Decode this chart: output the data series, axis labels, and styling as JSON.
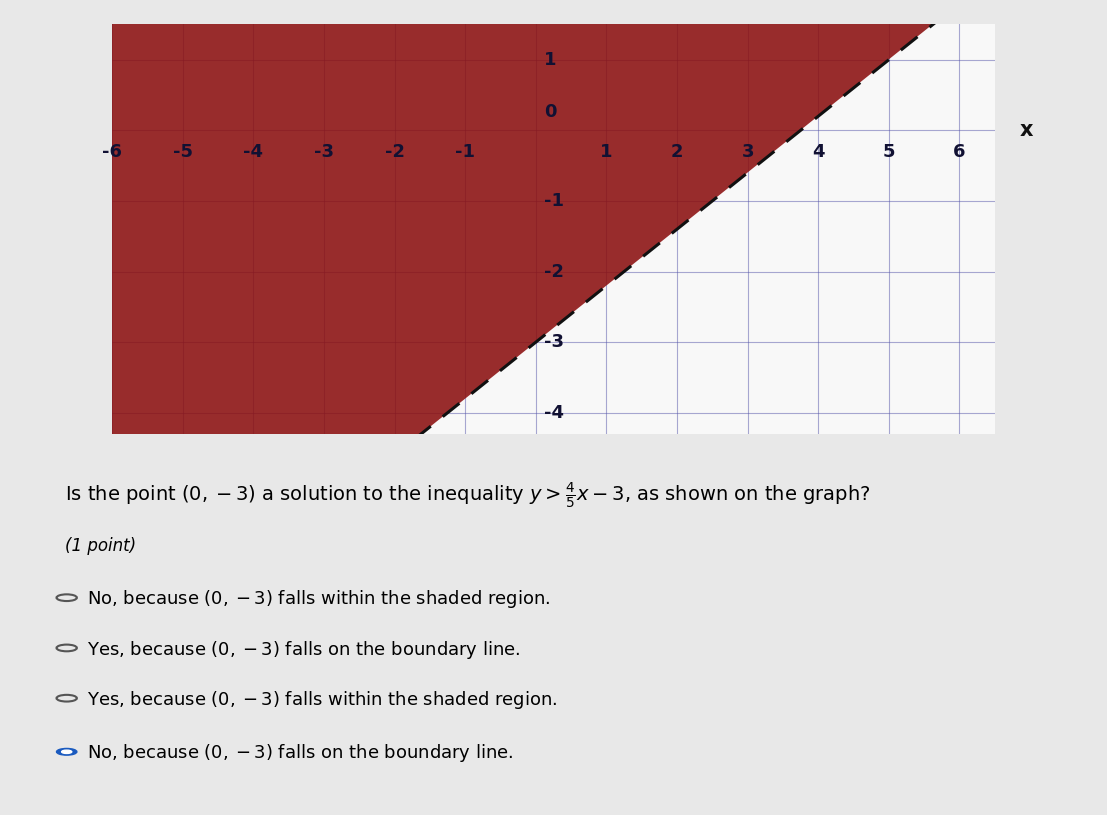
{
  "slope": 0.8,
  "intercept": -3,
  "xmin": -6,
  "xmax": 6.5,
  "ymin": -4.3,
  "ymax": 1.5,
  "x_ticks": [
    -6,
    -5,
    -4,
    -3,
    -2,
    -1,
    0,
    1,
    2,
    3,
    4,
    5,
    6
  ],
  "y_ticks": [
    -4,
    -3,
    -2,
    -1,
    0,
    1
  ],
  "shade_color": "#8B1010",
  "shade_alpha": 0.88,
  "dashed_line_color": "#111111",
  "grid_color": "#5555aa",
  "grid_alpha": 0.5,
  "axis_color": "#111111",
  "graph_bg": "#f8f8f8",
  "page_bg": "#e8e8e8",
  "tick_fontsize": 13,
  "tick_color": "#111133",
  "question_text": "Is the point $(0, -3)$ a solution to the inequality $y > \\frac{4}{5}x - 3$, as shown on the graph?",
  "points_label": "(1 point)",
  "options": [
    {
      "text": "No, because $(0, -3)$ falls within the shaded region.",
      "selected": false
    },
    {
      "text": "Yes, because $(0, -3)$ falls on the boundary line.",
      "selected": false
    },
    {
      "text": "Yes, because $(0, -3)$ falls within the shaded region.",
      "selected": false
    },
    {
      "text": "No, because $(0, -3)$ falls on the boundary line.",
      "selected": true
    }
  ],
  "q_fontsize": 14,
  "opt_fontsize": 13
}
